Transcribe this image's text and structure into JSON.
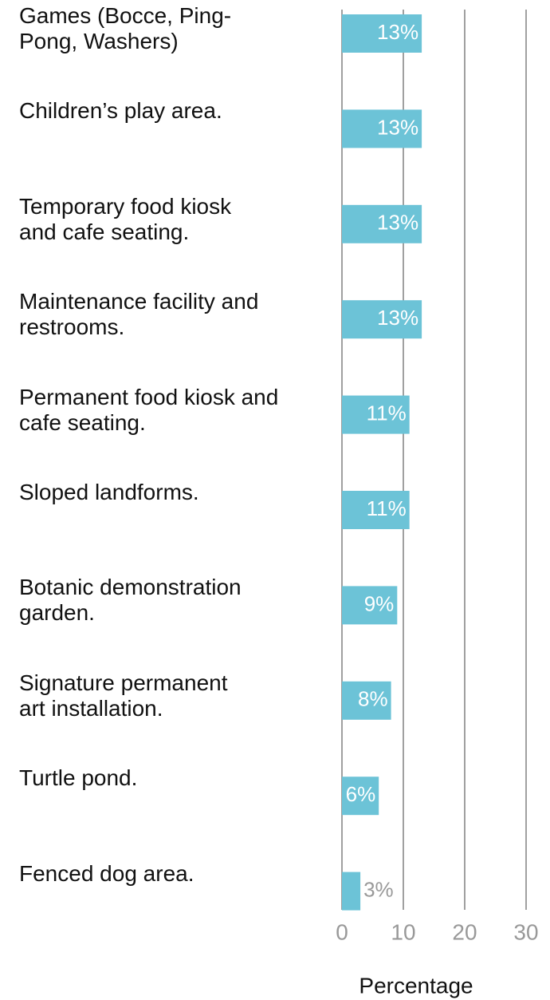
{
  "chart_data": {
    "type": "barh",
    "categories": [
      "Games (Bocce, Ping-\nPong, Washers)",
      "Children’s play area.",
      "Temporary food kiosk\nand cafe seating.",
      "Maintenance facility and\nrestrooms.",
      "Permanent food kiosk and\ncafe seating.",
      "Sloped landforms.",
      "Botanic demonstration\ngarden.",
      "Signature permanent\nart installation.",
      "Turtle pond.",
      "Fenced dog area."
    ],
    "values": [
      13,
      13,
      13,
      13,
      11,
      11,
      9,
      8,
      6,
      3
    ],
    "value_labels": [
      "13%",
      "13%",
      "13%",
      "13%",
      "11%",
      "11%",
      "9%",
      "8%",
      "6%",
      "3%"
    ],
    "color": "#6cc3d7",
    "xlabel": "Percentage",
    "xlim": [
      0,
      30
    ],
    "xticks": [
      0,
      10,
      20,
      30
    ],
    "grid": true
  }
}
